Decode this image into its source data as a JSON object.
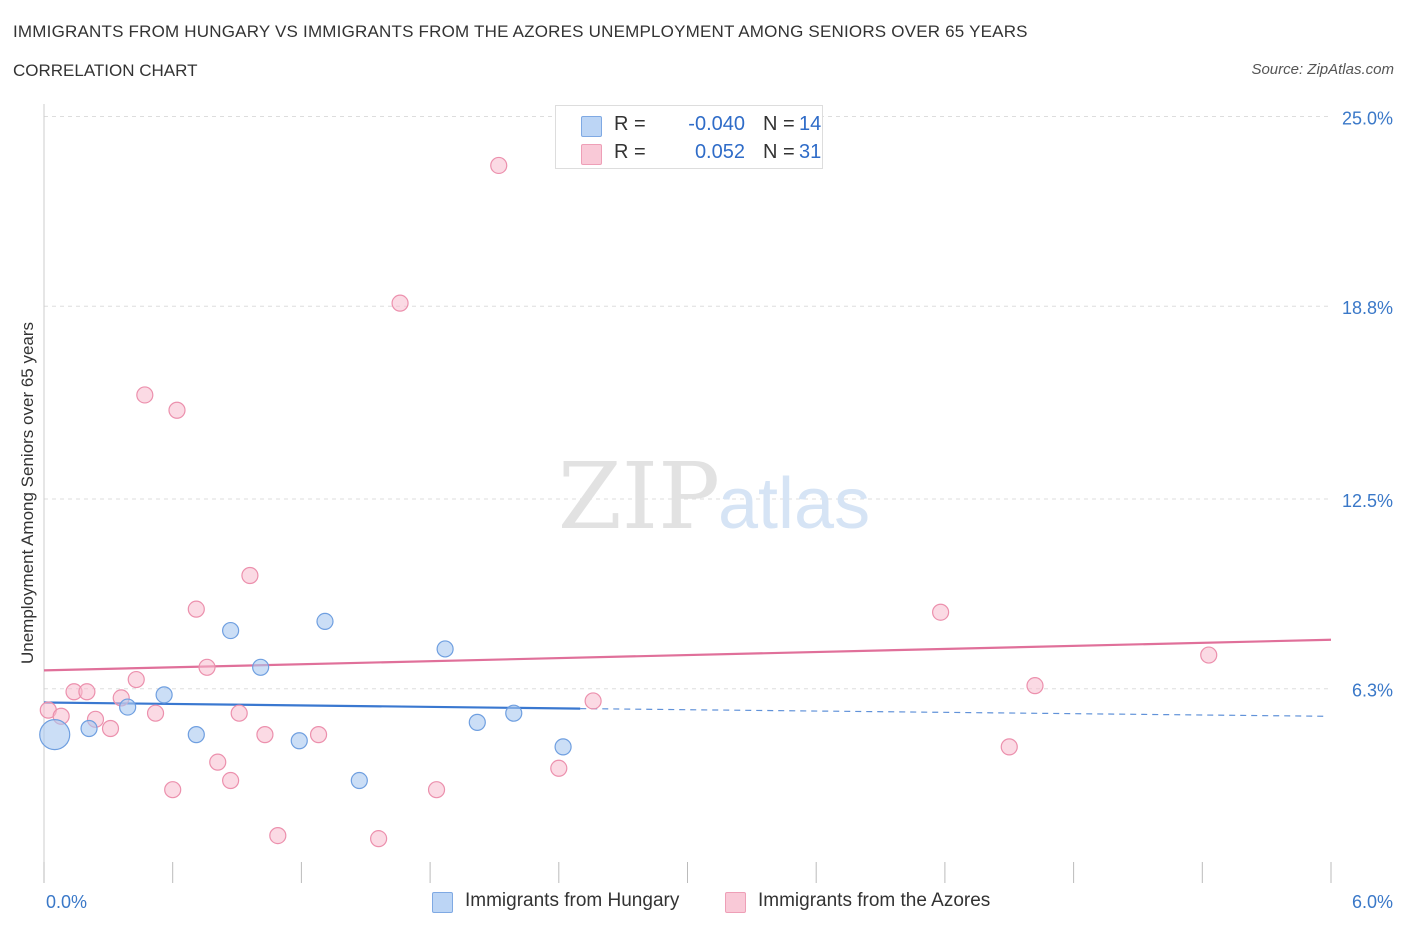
{
  "header": {
    "title": "IMMIGRANTS FROM HUNGARY VS IMMIGRANTS FROM THE AZORES UNEMPLOYMENT AMONG SENIORS OVER 65 YEARS",
    "subtitle": "CORRELATION CHART",
    "source": "Source: ZipAtlas.com"
  },
  "legend": {
    "rows": [
      {
        "r_label": "R =",
        "r_value": "-0.040",
        "n_label": "N =",
        "n_value": "14"
      },
      {
        "r_label": "R =",
        "r_value": "0.052",
        "n_label": "N =",
        "n_value": "31"
      }
    ]
  },
  "bottom_legend": [
    "Immigrants from Hungary",
    "Immigrants from the Azores"
  ],
  "colors": {
    "hungary_fill": "#a9c8f0",
    "hungary_stroke": "#6f9fe0",
    "hungary_line": "#3a78d0",
    "azores_fill": "#f7bccd",
    "azores_stroke": "#ec90ad",
    "azores_line": "#e0709a",
    "tick_label": "#3a78c8",
    "grid": "#dddddd"
  },
  "watermark": {
    "zip": "ZIP",
    "atlas": "atlas"
  },
  "chart_data": {
    "type": "scatter",
    "title": "IMMIGRANTS FROM HUNGARY VS IMMIGRANTS FROM THE AZORES UNEMPLOYMENT AMONG SENIORS OVER 65 YEARS",
    "xlabel": "",
    "ylabel": "Unemployment Among Seniors over 65 years",
    "xlim": [
      0,
      6
    ],
    "ylim": [
      0,
      25
    ],
    "x_tick_labels": [
      {
        "value": 0,
        "label": "0.0%"
      },
      {
        "value": 6,
        "label": "6.0%"
      }
    ],
    "y_tick_labels": [
      {
        "value": 6.3,
        "label": "6.3%"
      },
      {
        "value": 12.5,
        "label": "12.5%"
      },
      {
        "value": 18.8,
        "label": "18.8%"
      },
      {
        "value": 25.0,
        "label": "25.0%"
      }
    ],
    "series": [
      {
        "name": "Immigrants from Hungary",
        "r": -0.04,
        "n": 14,
        "points": [
          {
            "x": 0.05,
            "y": 4.8,
            "size": "large"
          },
          {
            "x": 0.21,
            "y": 5.0
          },
          {
            "x": 0.39,
            "y": 5.7
          },
          {
            "x": 0.56,
            "y": 6.1
          },
          {
            "x": 0.71,
            "y": 4.8
          },
          {
            "x": 0.87,
            "y": 8.2
          },
          {
            "x": 1.01,
            "y": 7.0
          },
          {
            "x": 1.19,
            "y": 4.6
          },
          {
            "x": 1.31,
            "y": 8.5
          },
          {
            "x": 1.47,
            "y": 3.3
          },
          {
            "x": 1.87,
            "y": 7.6
          },
          {
            "x": 2.02,
            "y": 5.2
          },
          {
            "x": 2.19,
            "y": 5.5
          },
          {
            "x": 2.42,
            "y": 4.4
          }
        ],
        "trend": {
          "x0": 0.0,
          "y0": 5.85,
          "x1": 2.5,
          "y1": 5.65,
          "dash_to_x": 6.0,
          "dash_to_y": 5.4
        }
      },
      {
        "name": "Immigrants from the Azores",
        "r": 0.052,
        "n": 31,
        "points": [
          {
            "x": 0.02,
            "y": 5.6
          },
          {
            "x": 0.08,
            "y": 5.4
          },
          {
            "x": 0.14,
            "y": 6.2
          },
          {
            "x": 0.2,
            "y": 6.2
          },
          {
            "x": 0.24,
            "y": 5.3
          },
          {
            "x": 0.31,
            "y": 5.0
          },
          {
            "x": 0.36,
            "y": 6.0
          },
          {
            "x": 0.43,
            "y": 6.6
          },
          {
            "x": 0.47,
            "y": 15.9
          },
          {
            "x": 0.52,
            "y": 5.5
          },
          {
            "x": 0.6,
            "y": 3.0
          },
          {
            "x": 0.62,
            "y": 15.4
          },
          {
            "x": 0.71,
            "y": 8.9
          },
          {
            "x": 0.76,
            "y": 7.0
          },
          {
            "x": 0.81,
            "y": 3.9
          },
          {
            "x": 0.87,
            "y": 3.3
          },
          {
            "x": 0.91,
            "y": 5.5
          },
          {
            "x": 0.96,
            "y": 10.0
          },
          {
            "x": 1.03,
            "y": 4.8
          },
          {
            "x": 1.09,
            "y": 1.5
          },
          {
            "x": 1.28,
            "y": 4.8
          },
          {
            "x": 1.56,
            "y": 1.4
          },
          {
            "x": 1.66,
            "y": 18.9
          },
          {
            "x": 1.83,
            "y": 3.0
          },
          {
            "x": 2.12,
            "y": 23.4
          },
          {
            "x": 2.4,
            "y": 3.7
          },
          {
            "x": 2.56,
            "y": 5.9
          },
          {
            "x": 4.18,
            "y": 8.8
          },
          {
            "x": 4.5,
            "y": 4.4
          },
          {
            "x": 4.62,
            "y": 6.4
          },
          {
            "x": 5.43,
            "y": 7.4
          }
        ],
        "trend": {
          "x0": 0.0,
          "y0": 6.9,
          "x1": 6.0,
          "y1": 7.9
        }
      }
    ]
  }
}
